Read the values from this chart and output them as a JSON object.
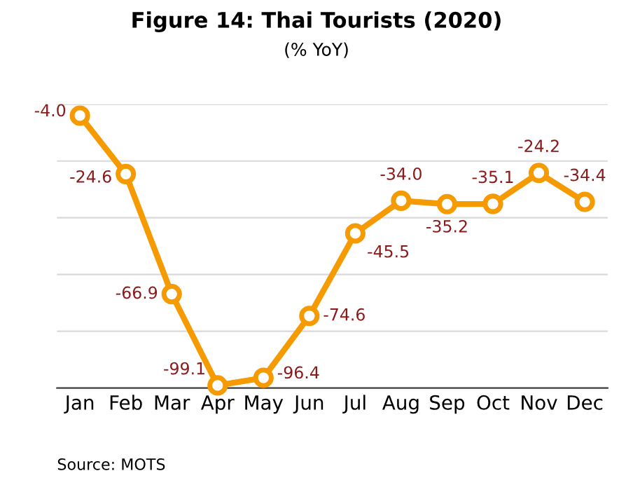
{
  "chart_data": {
    "type": "line",
    "title": "Figure 14: Thai Tourists (2020)",
    "subtitle": "(% YoY)",
    "categories": [
      "Jan",
      "Feb",
      "Mar",
      "Apr",
      "May",
      "Jun",
      "Jul",
      "Aug",
      "Sep",
      "Oct",
      "Nov",
      "Dec"
    ],
    "series": [
      {
        "color": "#f59a00",
        "values": [
          -4.0,
          -24.6,
          -66.9,
          -99.1,
          -96.4,
          -74.6,
          -45.5,
          -34.0,
          -35.2,
          -35.1,
          -24.2,
          -34.4
        ],
        "value_labels": [
          "-4.0",
          "-24.6",
          "-66.9",
          "-99.1",
          "-96.4",
          "-74.6",
          "-45.5",
          "-34.0",
          "-35.2",
          "-35.1",
          "-24.2",
          "-34.4"
        ]
      }
    ],
    "ylim": [
      -100,
      0
    ],
    "yticks": [
      {
        "value": -100,
        "label": null
      },
      {
        "value": -80,
        "label": null
      },
      {
        "value": -60,
        "label": null
      },
      {
        "value": -40,
        "label": null
      },
      {
        "value": -20,
        "label": null
      },
      {
        "value": 0,
        "label": null
      }
    ],
    "tick_labels": "x",
    "grid": "y",
    "marker": "circle",
    "line_style": "solid",
    "legend": false,
    "annotations": [
      "Source: MOTS"
    ]
  }
}
